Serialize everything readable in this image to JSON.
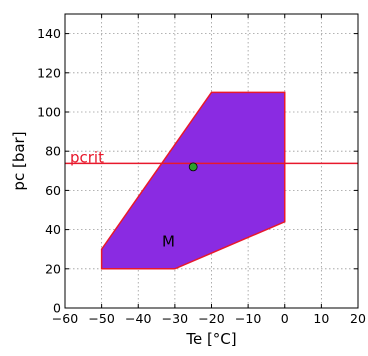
{
  "chart_data": {
    "type": "area",
    "xlabel": "Te [°C]",
    "ylabel": "pc [bar]",
    "xlim": [
      -60,
      20
    ],
    "ylim": [
      0,
      150
    ],
    "xticks": [
      -60,
      -50,
      -40,
      -30,
      -20,
      -10,
      0,
      10,
      20
    ],
    "yticks": [
      0,
      20,
      40,
      60,
      80,
      100,
      120,
      140
    ],
    "xtick_labels": [
      "−60",
      "−50",
      "−40",
      "−30",
      "−20",
      "−10",
      "0",
      "10",
      "20"
    ],
    "ytick_labels": [
      "0",
      "20",
      "40",
      "60",
      "80",
      "100",
      "120",
      "140"
    ],
    "grid": true,
    "region": {
      "label": "M",
      "label_at": [
        -33.5,
        34
      ],
      "points": [
        [
          -50,
          20
        ],
        [
          -30,
          20
        ],
        [
          0,
          44
        ],
        [
          0,
          110
        ],
        [
          -20,
          110
        ],
        [
          -50,
          30
        ]
      ]
    },
    "hline": {
      "label": "pcrit",
      "y": 73.8
    },
    "point": {
      "x": -25,
      "y": 72
    },
    "colors": {
      "region_fill": "#8a2be2",
      "region_edge": "#e8192c",
      "pcrit_line": "#e8192c",
      "point_fill": "#2ca02c",
      "grid": "#9a9a9a"
    }
  }
}
